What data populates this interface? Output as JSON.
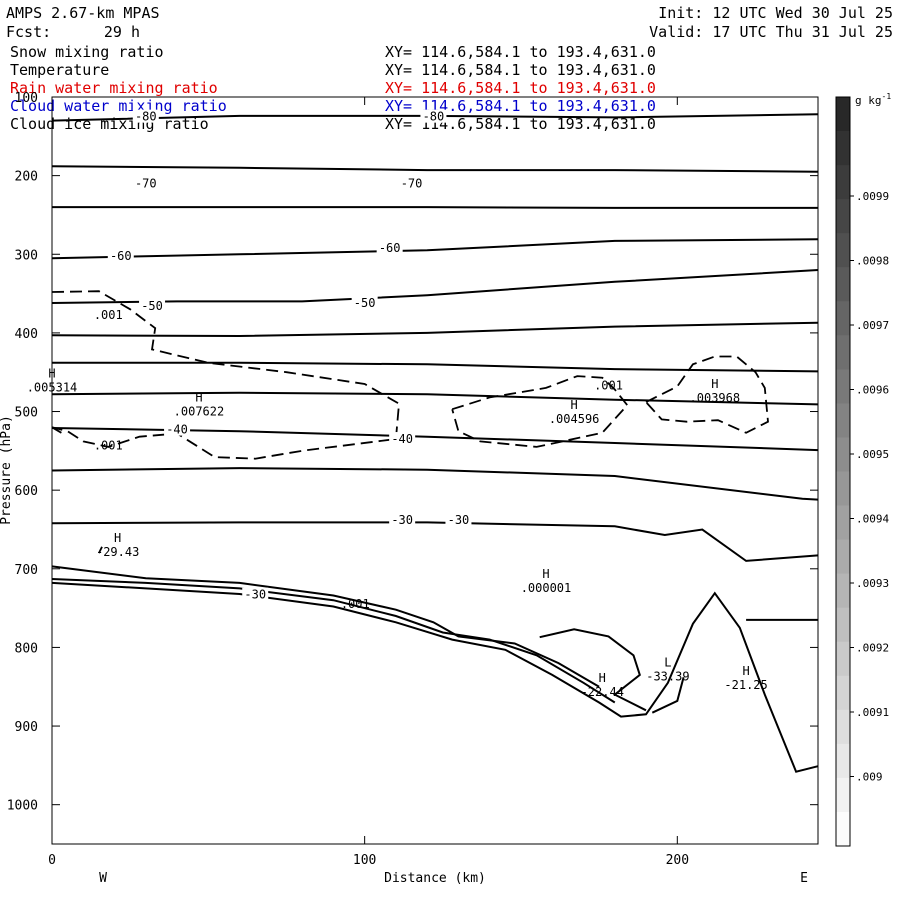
{
  "header": {
    "model": "AMPS 2.67-km MPAS",
    "init": "Init: 12 UTC Wed 30 Jul 25",
    "fcst_label": "Fcst:",
    "fcst_value": "29 h",
    "valid": "Valid: 17 UTC Thu 31 Jul 25"
  },
  "fields": [
    {
      "name": "Snow mixing ratio",
      "xy": "XY= 114.6,584.1 to 193.4,631.0",
      "color": "#000000"
    },
    {
      "name": "Temperature",
      "xy": "XY= 114.6,584.1 to 193.4,631.0",
      "color": "#000000"
    },
    {
      "name": "Rain water mixing ratio",
      "xy": "XY= 114.6,584.1 to 193.4,631.0",
      "color": "#e00000"
    },
    {
      "name": "Cloud water mixing ratio",
      "xy": "XY= 114.6,584.1 to 193.4,631.0",
      "color": "#0000cc"
    },
    {
      "name": "Cloud ice mixing ratio",
      "xy": "XY= 114.6,584.1 to 193.4,631.0",
      "color": "#000000"
    }
  ],
  "chart_data": {
    "type": "cross-section contour",
    "xlabel": "Distance (km)",
    "ylabel": "Pressure (hPa)",
    "xlim": [
      0,
      245
    ],
    "ylim": [
      100,
      1050
    ],
    "x_ticks": [
      0,
      100,
      200
    ],
    "y_ticks": [
      100,
      200,
      300,
      400,
      500,
      600,
      700,
      800,
      900,
      1000
    ],
    "left_end": "W",
    "right_end": "E",
    "colorbar": {
      "unit": "g kg",
      "unit_exp": "-1",
      "ticks": [
        ".0099",
        ".0098",
        ".0097",
        ".0096",
        ".0095",
        ".0094",
        ".0093",
        ".0092",
        ".0091",
        ".009"
      ]
    },
    "isotherms": [
      {
        "points": [
          [
            0,
            130
          ],
          [
            60,
            124
          ],
          [
            120,
            124
          ],
          [
            180,
            126
          ],
          [
            245,
            122
          ]
        ]
      },
      {
        "points": [
          [
            0,
            188
          ],
          [
            60,
            190
          ],
          [
            120,
            193
          ],
          [
            180,
            193
          ],
          [
            245,
            195
          ]
        ]
      },
      {
        "points": [
          [
            0,
            240
          ],
          [
            60,
            240
          ],
          [
            120,
            240
          ],
          [
            180,
            241
          ],
          [
            245,
            241
          ]
        ]
      },
      {
        "points": [
          [
            0,
            305
          ],
          [
            60,
            300
          ],
          [
            120,
            295
          ],
          [
            180,
            283
          ],
          [
            245,
            281
          ]
        ]
      },
      {
        "points": [
          [
            0,
            362
          ],
          [
            40,
            360
          ],
          [
            80,
            360
          ],
          [
            120,
            352
          ],
          [
            180,
            335
          ],
          [
            245,
            320
          ]
        ]
      },
      {
        "points": [
          [
            0,
            403
          ],
          [
            60,
            404
          ],
          [
            120,
            400
          ],
          [
            180,
            392
          ],
          [
            245,
            387
          ]
        ]
      },
      {
        "points": [
          [
            0,
            438
          ],
          [
            60,
            438
          ],
          [
            120,
            440
          ],
          [
            180,
            446
          ],
          [
            245,
            449
          ]
        ]
      },
      {
        "points": [
          [
            0,
            478
          ],
          [
            60,
            476
          ],
          [
            120,
            478
          ],
          [
            180,
            485
          ],
          [
            245,
            491
          ]
        ]
      },
      {
        "points": [
          [
            0,
            521
          ],
          [
            60,
            525
          ],
          [
            120,
            532
          ],
          [
            180,
            540
          ],
          [
            245,
            549
          ]
        ]
      },
      {
        "points": [
          [
            0,
            575
          ],
          [
            60,
            572
          ],
          [
            120,
            574
          ],
          [
            180,
            582
          ],
          [
            240,
            611
          ],
          [
            245,
            612
          ]
        ]
      },
      {
        "points": [
          [
            0,
            642
          ],
          [
            60,
            641
          ],
          [
            120,
            641
          ],
          [
            180,
            646
          ],
          [
            196,
            657
          ],
          [
            208,
            650
          ],
          [
            222,
            690
          ],
          [
            245,
            683
          ]
        ]
      },
      {
        "points": [
          [
            0,
            697
          ],
          [
            30,
            712
          ],
          [
            60,
            718
          ],
          [
            90,
            734
          ],
          [
            110,
            752
          ],
          [
            122,
            768
          ],
          [
            130,
            786
          ],
          [
            148,
            795
          ],
          [
            162,
            820
          ],
          [
            175,
            850
          ]
        ]
      },
      {
        "points": [
          [
            0,
            713
          ],
          [
            30,
            718
          ],
          [
            60,
            725
          ],
          [
            90,
            740
          ],
          [
            110,
            760
          ],
          [
            125,
            781
          ],
          [
            140,
            790
          ],
          [
            155,
            810
          ],
          [
            170,
            845
          ],
          [
            180,
            870
          ]
        ]
      },
      {
        "points": [
          [
            0,
            718
          ],
          [
            30,
            725
          ],
          [
            60,
            732
          ],
          [
            90,
            748
          ],
          [
            110,
            768
          ],
          [
            128,
            790
          ],
          [
            145,
            803
          ],
          [
            160,
            835
          ],
          [
            175,
            870
          ],
          [
            182,
            888
          ],
          [
            190,
            885
          ],
          [
            197,
            845
          ],
          [
            205,
            770
          ],
          [
            212,
            731
          ],
          [
            220,
            775
          ],
          [
            228,
            860
          ],
          [
            238,
            958
          ],
          [
            245,
            951
          ]
        ]
      },
      {
        "points": [
          [
            156,
            787
          ],
          [
            167,
            777
          ],
          [
            178,
            786
          ],
          [
            186,
            810
          ],
          [
            188,
            835
          ],
          [
            180,
            860
          ],
          [
            190,
            880
          ]
        ]
      },
      {
        "points": [
          [
            192,
            883
          ],
          [
            200,
            868
          ],
          [
            202,
            838
          ]
        ]
      },
      {
        "points": [
          [
            222,
            765
          ],
          [
            245,
            765
          ]
        ]
      }
    ],
    "temp_labels": [
      {
        "x": 30,
        "p": 125,
        "text": "-80"
      },
      {
        "x": 122,
        "p": 125,
        "text": "-80"
      },
      {
        "x": 30,
        "p": 210,
        "text": "-70"
      },
      {
        "x": 115,
        "p": 210,
        "text": "-70"
      },
      {
        "x": 22,
        "p": 302,
        "text": "-60"
      },
      {
        "x": 108,
        "p": 292,
        "text": "-60"
      },
      {
        "x": 32,
        "p": 366,
        "text": "-50"
      },
      {
        "x": 100,
        "p": 362,
        "text": "-50"
      },
      {
        "x": 40,
        "p": 523,
        "text": "-40"
      },
      {
        "x": 112,
        "p": 535,
        "text": "-40"
      },
      {
        "x": 112,
        "p": 638,
        "text": "-30"
      },
      {
        "x": 130,
        "p": 638,
        "text": "-30"
      },
      {
        "x": 65,
        "p": 733,
        "text": "-30"
      }
    ],
    "dashed_contours": [
      {
        "points": [
          [
            0,
            348
          ],
          [
            15,
            347
          ],
          [
            25,
            370
          ],
          [
            33,
            394
          ],
          [
            32,
            421
          ],
          [
            50,
            438
          ],
          [
            75,
            450
          ],
          [
            100,
            465
          ],
          [
            111,
            490
          ],
          [
            110,
            535
          ],
          [
            80,
            550
          ],
          [
            65,
            560
          ],
          [
            52,
            558
          ],
          [
            40,
            528
          ],
          [
            28,
            532
          ],
          [
            18,
            545
          ],
          [
            10,
            538
          ],
          [
            5,
            525
          ],
          [
            0,
            520
          ]
        ]
      },
      {
        "points": [
          [
            128,
            497
          ],
          [
            140,
            482
          ],
          [
            158,
            470
          ],
          [
            168,
            455
          ],
          [
            176,
            457
          ],
          [
            180,
            472
          ],
          [
            184,
            492
          ],
          [
            176,
            527
          ],
          [
            155,
            545
          ],
          [
            137,
            538
          ],
          [
            130,
            525
          ],
          [
            128,
            497
          ]
        ]
      },
      {
        "points": [
          [
            190,
            488
          ],
          [
            200,
            468
          ],
          [
            205,
            440
          ],
          [
            212,
            430
          ],
          [
            219,
            430
          ],
          [
            225,
            450
          ],
          [
            228,
            470
          ],
          [
            229,
            513
          ],
          [
            222,
            527
          ],
          [
            213,
            511
          ],
          [
            203,
            513
          ],
          [
            195,
            510
          ],
          [
            190,
            488
          ]
        ]
      },
      {
        "points": [
          [
            16,
            672
          ],
          [
            15,
            680
          ]
        ]
      },
      {
        "points": [
          [
            0,
            520
          ],
          [
            3,
            527
          ]
        ]
      }
    ],
    "extrema": [
      {
        "x": 0,
        "p": 457,
        "mark": "H",
        "value": ".005314"
      },
      {
        "x": 47,
        "p": 487,
        "mark": "H",
        "value": ".007622"
      },
      {
        "x": 167,
        "p": 497,
        "mark": "H",
        "value": ".004596"
      },
      {
        "x": 212,
        "p": 470,
        "mark": "H",
        "value": ".003968"
      },
      {
        "x": 21,
        "p": 666,
        "mark": "H",
        "value": "-29.43"
      },
      {
        "x": 158,
        "p": 712,
        "mark": "H",
        "value": ".000001"
      },
      {
        "x": 176,
        "p": 844,
        "mark": "H",
        "value": "-22.44"
      },
      {
        "x": 197,
        "p": 824,
        "mark": "L",
        "value": "-33.39"
      },
      {
        "x": 222,
        "p": 835,
        "mark": "H",
        "value": "-21.25"
      }
    ],
    "contour_value_labels": [
      {
        "x": 18,
        "p": 377,
        "text": ".001"
      },
      {
        "x": 18,
        "p": 543,
        "text": ".001"
      },
      {
        "x": 178,
        "p": 467,
        "text": ".001"
      },
      {
        "x": 97,
        "p": 745,
        "text": ".001"
      }
    ]
  }
}
